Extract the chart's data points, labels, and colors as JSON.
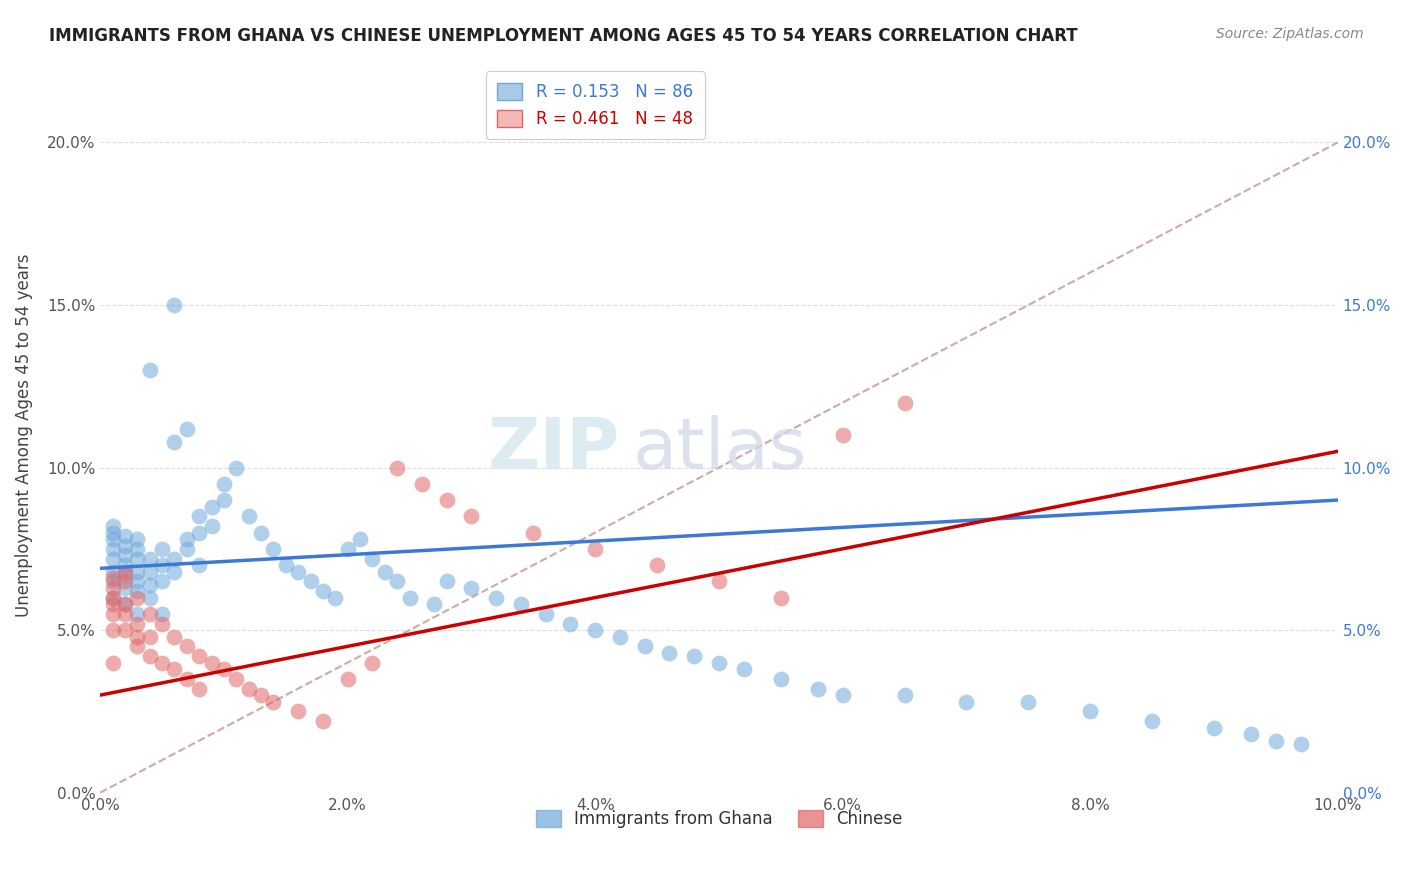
{
  "title": "IMMIGRANTS FROM GHANA VS CHINESE UNEMPLOYMENT AMONG AGES 45 TO 54 YEARS CORRELATION CHART",
  "source": "Source: ZipAtlas.com",
  "ylabel": "Unemployment Among Ages 45 to 54 years",
  "xlim": [
    0.0,
    0.1
  ],
  "ylim": [
    0.0,
    0.22
  ],
  "xticks": [
    0.0,
    0.02,
    0.04,
    0.06,
    0.08,
    0.1
  ],
  "xticklabels": [
    "0.0%",
    "2.0%",
    "4.0%",
    "6.0%",
    "8.0%",
    "10.0%"
  ],
  "yticks": [
    0.0,
    0.05,
    0.1,
    0.15,
    0.2
  ],
  "yticklabels": [
    "0.0%",
    "5.0%",
    "10.0%",
    "15.0%",
    "20.0%"
  ],
  "legend_r1": "R = 0.153",
  "legend_n1": "N = 86",
  "legend_r2": "R = 0.461",
  "legend_n2": "N = 48",
  "series1_label": "Immigrants from Ghana",
  "series2_label": "Chinese",
  "series1_color": "#6fa8dc",
  "series2_color": "#e06666",
  "trendline1_color": "#3c78d8",
  "trendline2_color": "#cc0000",
  "ref_line_color": "#ccaaaa",
  "watermark_zip": "ZIP",
  "watermark_atlas": "atlas",
  "trendline1_x0": 0.0,
  "trendline1_y0": 0.069,
  "trendline1_x1": 0.1,
  "trendline1_y1": 0.09,
  "trendline2_x0": 0.0,
  "trendline2_y0": 0.03,
  "trendline2_x1": 0.1,
  "trendline2_y1": 0.105,
  "ghana_x": [
    0.001,
    0.001,
    0.001,
    0.001,
    0.001,
    0.001,
    0.001,
    0.001,
    0.002,
    0.002,
    0.002,
    0.002,
    0.002,
    0.002,
    0.002,
    0.003,
    0.003,
    0.003,
    0.003,
    0.003,
    0.003,
    0.003,
    0.004,
    0.004,
    0.004,
    0.004,
    0.004,
    0.005,
    0.005,
    0.005,
    0.005,
    0.006,
    0.006,
    0.006,
    0.006,
    0.007,
    0.007,
    0.007,
    0.008,
    0.008,
    0.008,
    0.009,
    0.009,
    0.01,
    0.01,
    0.011,
    0.012,
    0.013,
    0.014,
    0.015,
    0.016,
    0.017,
    0.018,
    0.019,
    0.02,
    0.021,
    0.022,
    0.023,
    0.024,
    0.025,
    0.027,
    0.028,
    0.03,
    0.032,
    0.034,
    0.036,
    0.038,
    0.04,
    0.042,
    0.044,
    0.046,
    0.048,
    0.05,
    0.052,
    0.055,
    0.058,
    0.06,
    0.065,
    0.07,
    0.075,
    0.08,
    0.085,
    0.09,
    0.093,
    0.095,
    0.097
  ],
  "ghana_y": [
    0.065,
    0.068,
    0.072,
    0.075,
    0.078,
    0.08,
    0.082,
    0.06,
    0.063,
    0.067,
    0.07,
    0.073,
    0.076,
    0.079,
    0.058,
    0.062,
    0.065,
    0.068,
    0.072,
    0.075,
    0.078,
    0.055,
    0.06,
    0.064,
    0.068,
    0.072,
    0.13,
    0.065,
    0.07,
    0.075,
    0.055,
    0.068,
    0.072,
    0.15,
    0.108,
    0.075,
    0.078,
    0.112,
    0.08,
    0.085,
    0.07,
    0.082,
    0.088,
    0.09,
    0.095,
    0.1,
    0.085,
    0.08,
    0.075,
    0.07,
    0.068,
    0.065,
    0.062,
    0.06,
    0.075,
    0.078,
    0.072,
    0.068,
    0.065,
    0.06,
    0.058,
    0.065,
    0.063,
    0.06,
    0.058,
    0.055,
    0.052,
    0.05,
    0.048,
    0.045,
    0.043,
    0.042,
    0.04,
    0.038,
    0.035,
    0.032,
    0.03,
    0.03,
    0.028,
    0.028,
    0.025,
    0.022,
    0.02,
    0.018,
    0.016,
    0.015
  ],
  "chinese_x": [
    0.001,
    0.001,
    0.001,
    0.001,
    0.001,
    0.001,
    0.001,
    0.002,
    0.002,
    0.002,
    0.002,
    0.002,
    0.003,
    0.003,
    0.003,
    0.003,
    0.004,
    0.004,
    0.004,
    0.005,
    0.005,
    0.006,
    0.006,
    0.007,
    0.007,
    0.008,
    0.008,
    0.009,
    0.01,
    0.011,
    0.012,
    0.013,
    0.014,
    0.016,
    0.018,
    0.02,
    0.022,
    0.024,
    0.026,
    0.028,
    0.03,
    0.035,
    0.04,
    0.045,
    0.05,
    0.055,
    0.06,
    0.065
  ],
  "chinese_y": [
    0.06,
    0.063,
    0.066,
    0.05,
    0.055,
    0.058,
    0.04,
    0.065,
    0.068,
    0.055,
    0.058,
    0.05,
    0.06,
    0.048,
    0.052,
    0.045,
    0.055,
    0.048,
    0.042,
    0.052,
    0.04,
    0.048,
    0.038,
    0.045,
    0.035,
    0.042,
    0.032,
    0.04,
    0.038,
    0.035,
    0.032,
    0.03,
    0.028,
    0.025,
    0.022,
    0.035,
    0.04,
    0.1,
    0.095,
    0.09,
    0.085,
    0.08,
    0.075,
    0.07,
    0.065,
    0.06,
    0.11,
    0.12
  ]
}
